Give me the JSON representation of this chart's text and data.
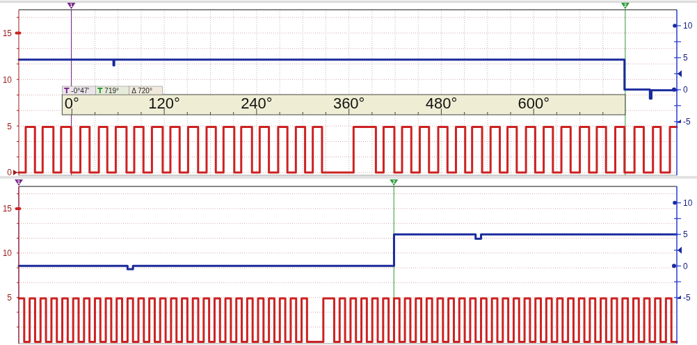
{
  "chart_data": [
    {
      "type": "step",
      "xlim": [
        -69,
        786
      ],
      "xticks": [
        {
          "value": 0,
          "label": "0°"
        },
        {
          "value": 30,
          "label": null
        },
        {
          "value": 60,
          "label": null
        },
        {
          "value": 90,
          "label": null
        },
        {
          "value": 120,
          "label": "120°"
        },
        {
          "value": 150,
          "label": null
        },
        {
          "value": 180,
          "label": null
        },
        {
          "value": 210,
          "label": null
        },
        {
          "value": 240,
          "label": "240°"
        },
        {
          "value": 270,
          "label": null
        },
        {
          "value": 300,
          "label": null
        },
        {
          "value": 330,
          "label": null
        },
        {
          "value": 360,
          "label": "360°"
        },
        {
          "value": 390,
          "label": null
        },
        {
          "value": 420,
          "label": null
        },
        {
          "value": 450,
          "label": null
        },
        {
          "value": 480,
          "label": "480°"
        },
        {
          "value": 510,
          "label": null
        },
        {
          "value": 540,
          "label": null
        },
        {
          "value": 570,
          "label": null
        },
        {
          "value": 600,
          "label": "600°"
        },
        {
          "value": 630,
          "label": null
        },
        {
          "value": 660,
          "label": null
        },
        {
          "value": 690,
          "label": null
        }
      ],
      "ylim": [
        -0.3,
        17.5
      ],
      "yticks": [
        0,
        {
          "value": 1.67,
          "label": null
        },
        {
          "value": 3.33,
          "label": null
        },
        5,
        {
          "value": 6.67,
          "label": null
        },
        {
          "value": 8.33,
          "label": null
        },
        10,
        {
          "value": 11.67,
          "label": null
        },
        {
          "value": 13.33,
          "label": null
        },
        15,
        {
          "value": 16.67,
          "label": null
        }
      ],
      "y2lim": [
        -13.4,
        12.5
      ],
      "y2ticks": [
        -5,
        {
          "value": -2.5,
          "label": null
        },
        0,
        {
          "value": 2.5,
          "label": null
        },
        5,
        {
          "value": 7.5,
          "label": null
        },
        10
      ],
      "grid": true,
      "series": [
        {
          "color": "#cc2222",
          "x": [
            -69,
            -60,
            -48,
            -38,
            -24,
            -14,
            -1,
            11,
            23,
            35,
            46,
            57,
            71,
            81,
            93,
            104,
            118,
            128,
            140,
            151,
            164,
            175,
            187,
            197,
            211,
            220,
            234,
            244,
            256,
            268,
            280,
            291,
            303,
            313,
            325,
            366,
            395,
            405,
            419,
            429,
            441,
            452,
            464,
            476,
            488,
            499,
            511,
            520,
            533,
            544,
            556,
            566,
            578,
            590,
            602,
            613,
            625,
            636,
            648,
            660,
            672,
            682,
            694,
            706,
            718,
            731,
            743,
            755,
            765,
            777,
            786
          ],
          "values": [
            0,
            4.9,
            0,
            4.9,
            0,
            4.9,
            0,
            4.9,
            0,
            4.9,
            0,
            4.9,
            0,
            4.9,
            0,
            4.9,
            0,
            4.9,
            0,
            4.9,
            0,
            4.9,
            0,
            4.9,
            0,
            4.9,
            0,
            4.9,
            0,
            4.9,
            0,
            4.9,
            0,
            4.9,
            0,
            4.9,
            0,
            4.9,
            0,
            4.9,
            0,
            4.9,
            0,
            4.9,
            0,
            4.9,
            0,
            4.9,
            0,
            4.9,
            0,
            4.9,
            0,
            4.9,
            0,
            4.9,
            0,
            4.9,
            0,
            4.9,
            0,
            4.9,
            0,
            4.9,
            0,
            4.9,
            0,
            4.9,
            0,
            4.9,
            4.9
          ]
        },
        {
          "color": "#1a2a9c",
          "axis": "y2",
          "x": [
            -69,
            54,
            55,
            718,
            751,
            753,
            786
          ],
          "values": [
            4.7,
            3.8,
            4.7,
            0,
            -1.4,
            -0.1,
            -0.1
          ]
        }
      ],
      "ref_lines": [
        {
          "axis": "x",
          "value": -0.78,
          "color": "#7a2a8a"
        },
        {
          "axis": "x",
          "value": 719,
          "color": "#2a9a3a"
        }
      ],
      "annotations": [
        "1",
        "2",
        "-0°47'",
        "719°",
        "Δ 720°"
      ]
    },
    {
      "type": "step",
      "categories": [
        null,
        null,
        null,
        null,
        null,
        null,
        null,
        null,
        null,
        null,
        null,
        null,
        null,
        null,
        null,
        null,
        null,
        null,
        null,
        null,
        null,
        null,
        null,
        null,
        null,
        null,
        null,
        null,
        null,
        null,
        null,
        null,
        null,
        null,
        null,
        null,
        null,
        null,
        null,
        null,
        null,
        null,
        null,
        null,
        null,
        null,
        null,
        null,
        null,
        null,
        null,
        null,
        null,
        null,
        null,
        null,
        null,
        null,
        null,
        null,
        null,
        null,
        null,
        null,
        null,
        null,
        null,
        null,
        null,
        null,
        null,
        null,
        null,
        null,
        null,
        null,
        null,
        null,
        null,
        null,
        null,
        null,
        null,
        null,
        null,
        null,
        null,
        null,
        null,
        null,
        null,
        null,
        null,
        null,
        null,
        null,
        null,
        null,
        null,
        null,
        null,
        null,
        null,
        null,
        null,
        null,
        null,
        null,
        null,
        null,
        null,
        null,
        null,
        null,
        null,
        null,
        null,
        null,
        null,
        null,
        null,
        null
      ],
      "ylim": [
        -0.2,
        17.5
      ],
      "yticks": [
        {
          "value": 1.67,
          "label": null
        },
        {
          "value": 3.33,
          "label": null
        },
        5,
        {
          "value": 6.67,
          "label": null
        },
        {
          "value": 8.33,
          "label": null
        },
        10,
        {
          "value": 11.67,
          "label": null
        },
        {
          "value": 13.33,
          "label": null
        },
        15,
        {
          "value": 16.67,
          "label": null
        }
      ],
      "y2lim": [
        -12.3,
        12.6
      ],
      "y2ticks": [
        -5,
        {
          "value": -2.5,
          "label": null
        },
        0,
        {
          "value": 2.5,
          "label": null
        },
        5,
        {
          "value": 7.5,
          "label": null
        },
        10
      ],
      "grid": "y",
      "series": [
        {
          "color": "#cc2222",
          "values": [
            4.9,
            0,
            4.9,
            0,
            4.9,
            0,
            4.9,
            0,
            4.9,
            0,
            4.9,
            0,
            4.9,
            0,
            4.9,
            0,
            4.9,
            0,
            4.9,
            0,
            4.9,
            0,
            4.9,
            0,
            4.9,
            0,
            4.9,
            0,
            4.9,
            0,
            4.9,
            0,
            4.9,
            0,
            4.9,
            0,
            4.9,
            0,
            4.9,
            0,
            4.9,
            0,
            4.9,
            0,
            4.9,
            0,
            4.9,
            0,
            4.9,
            0,
            4.9,
            0,
            4.9,
            0,
            0,
            0,
            4.9,
            4.9,
            0,
            4.9,
            0,
            4.9,
            0,
            4.9,
            0,
            4.9,
            0,
            4.9,
            0,
            4.9,
            0,
            4.9,
            0,
            4.9,
            0,
            4.9,
            0,
            4.9,
            0,
            4.9,
            0,
            4.9,
            0,
            4.9,
            0,
            4.9,
            0,
            4.9,
            0,
            4.9,
            0,
            4.9,
            0,
            4.9,
            0,
            4.9,
            0,
            4.9,
            0,
            4.9,
            0,
            4.9,
            0,
            4.9,
            0,
            4.9,
            0,
            4.9,
            0,
            4.9,
            0,
            4.9,
            0,
            4.9,
            0,
            4.9,
            0,
            4.9,
            0,
            4.9,
            0,
            0
          ]
        },
        {
          "color": "#1a2a9c",
          "axis": "y2",
          "values": [
            0,
            0,
            0,
            0,
            0,
            0,
            0,
            0,
            0,
            0,
            0,
            0,
            0,
            0,
            0,
            0,
            0,
            0,
            0,
            0,
            -0.5,
            0,
            0,
            0,
            0,
            0,
            0,
            0,
            0,
            0,
            0,
            0,
            0,
            0,
            0,
            0,
            0,
            0,
            0,
            0,
            0,
            0,
            0,
            0,
            0,
            0,
            0,
            0,
            0,
            0,
            0,
            0,
            0,
            0,
            0,
            0,
            0,
            0,
            0,
            0,
            0,
            0,
            0,
            0,
            0,
            0,
            0,
            0,
            0,
            5,
            5,
            5,
            5,
            5,
            5,
            5,
            5,
            5,
            5,
            5,
            5,
            5,
            5,
            5,
            4.3,
            5,
            5,
            5,
            5,
            5,
            5,
            5,
            5,
            5,
            5,
            5,
            5,
            5,
            5,
            5,
            5,
            5,
            5,
            5,
            5,
            5,
            5,
            5,
            5,
            5,
            5,
            5,
            5,
            5,
            5,
            5,
            5,
            5,
            5,
            5,
            5,
            5
          ]
        }
      ],
      "annotations": [
        "1",
        "2"
      ]
    }
  ]
}
